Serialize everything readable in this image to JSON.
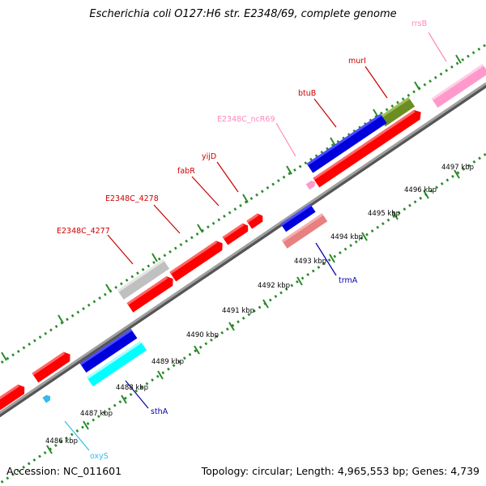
{
  "title": "Escherichia coli O127:H6 str. E2348/69, complete genome",
  "footer": {
    "accession": "Accession: NC_011601",
    "topology": "Topology: circular; Length: 4,965,553 bp; Genes: 4,739"
  },
  "colors": {
    "cds": "#ff0000",
    "cds_forward_alt": "#0000dd",
    "rrna": "#ff99cc",
    "ncrna": "#ff99cc",
    "trna": "#e88080",
    "misc": "#c0c0c0",
    "olive": "#6b8e23",
    "cyan": "#00ffff",
    "label_red": "#cc0000",
    "label_pink": "#ff88bb",
    "label_blue": "#0000aa",
    "label_cyan": "#33bbee",
    "dots_green": "#2a8a2a",
    "backbone": "#808080"
  },
  "gene_labels": {
    "rrsB": "rrsB",
    "murI": "murI",
    "btuB": "btuB",
    "ncR69": "E2348C_ncR69",
    "yijD": "yijD",
    "fabR": "fabR",
    "c4278": "E2348C_4278",
    "c4277": "E2348C_4277",
    "trmA": "trmA",
    "sthA": "sthA",
    "oxyS": "oxyS"
  },
  "kbp_labels": {
    "k4486": "4486 kbp",
    "k4487": "4487 kbp",
    "k4488": "4488 kbp",
    "k4489": "4489 kbp",
    "k4490": "4490 kbp",
    "k4491": "4491 kbp",
    "k4492": "4492 kbp",
    "k4493": "4493 kbp",
    "k4494": "4494 kbp",
    "k4495": "4495 kbp",
    "k4496": "4496 kbp",
    "k4497": "4497 kbp"
  }
}
